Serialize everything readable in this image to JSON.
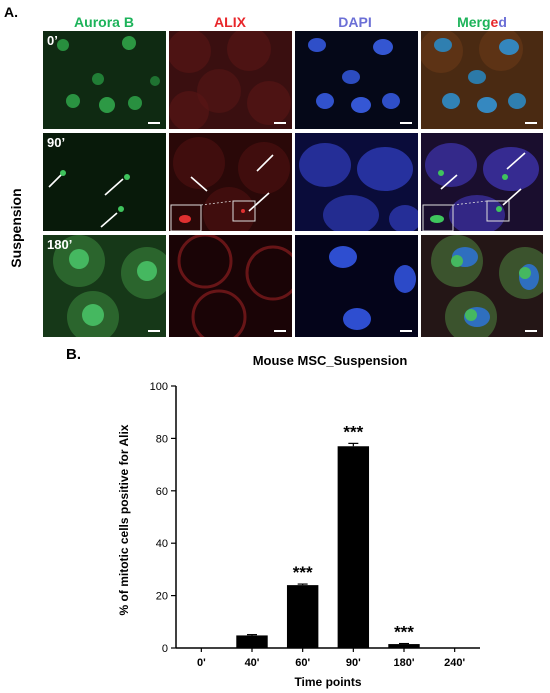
{
  "panel_a_label": "A.",
  "panel_b_label": "B.",
  "columns": [
    {
      "label": "Aurora B",
      "color": "#1db35a"
    },
    {
      "label": "ALIX",
      "color": "#e8262a"
    },
    {
      "label": "DAPI",
      "color": "#6b6fd6"
    }
  ],
  "merged_label": {
    "parts": [
      {
        "text": "Merg",
        "color": "#1db35a"
      },
      {
        "text": "e",
        "color": "#e8262a"
      },
      {
        "text": "d",
        "color": "#6b6fd6"
      }
    ]
  },
  "row_group_label": "Suspension",
  "rows": [
    {
      "time": "0’"
    },
    {
      "time": "90’"
    },
    {
      "time": "180’"
    }
  ],
  "chart_data": {
    "type": "bar",
    "title": "Mouse MSC_Suspension",
    "xlabel": "Time points",
    "ylabel": "% of mitotic cells positive for Alix",
    "categories": [
      "0'",
      "40'",
      "60'",
      "90'",
      "180'",
      "240'"
    ],
    "values": [
      0,
      4.8,
      24.0,
      77.0,
      1.5,
      0
    ],
    "errors": [
      0,
      0.3,
      0.4,
      1.1,
      0.2,
      0
    ],
    "significance": [
      "",
      "",
      "***",
      "***",
      "***",
      ""
    ],
    "ylim": [
      0,
      100
    ],
    "yticks": [
      0,
      20,
      40,
      60,
      80,
      100
    ],
    "bar_color": "#000000"
  }
}
